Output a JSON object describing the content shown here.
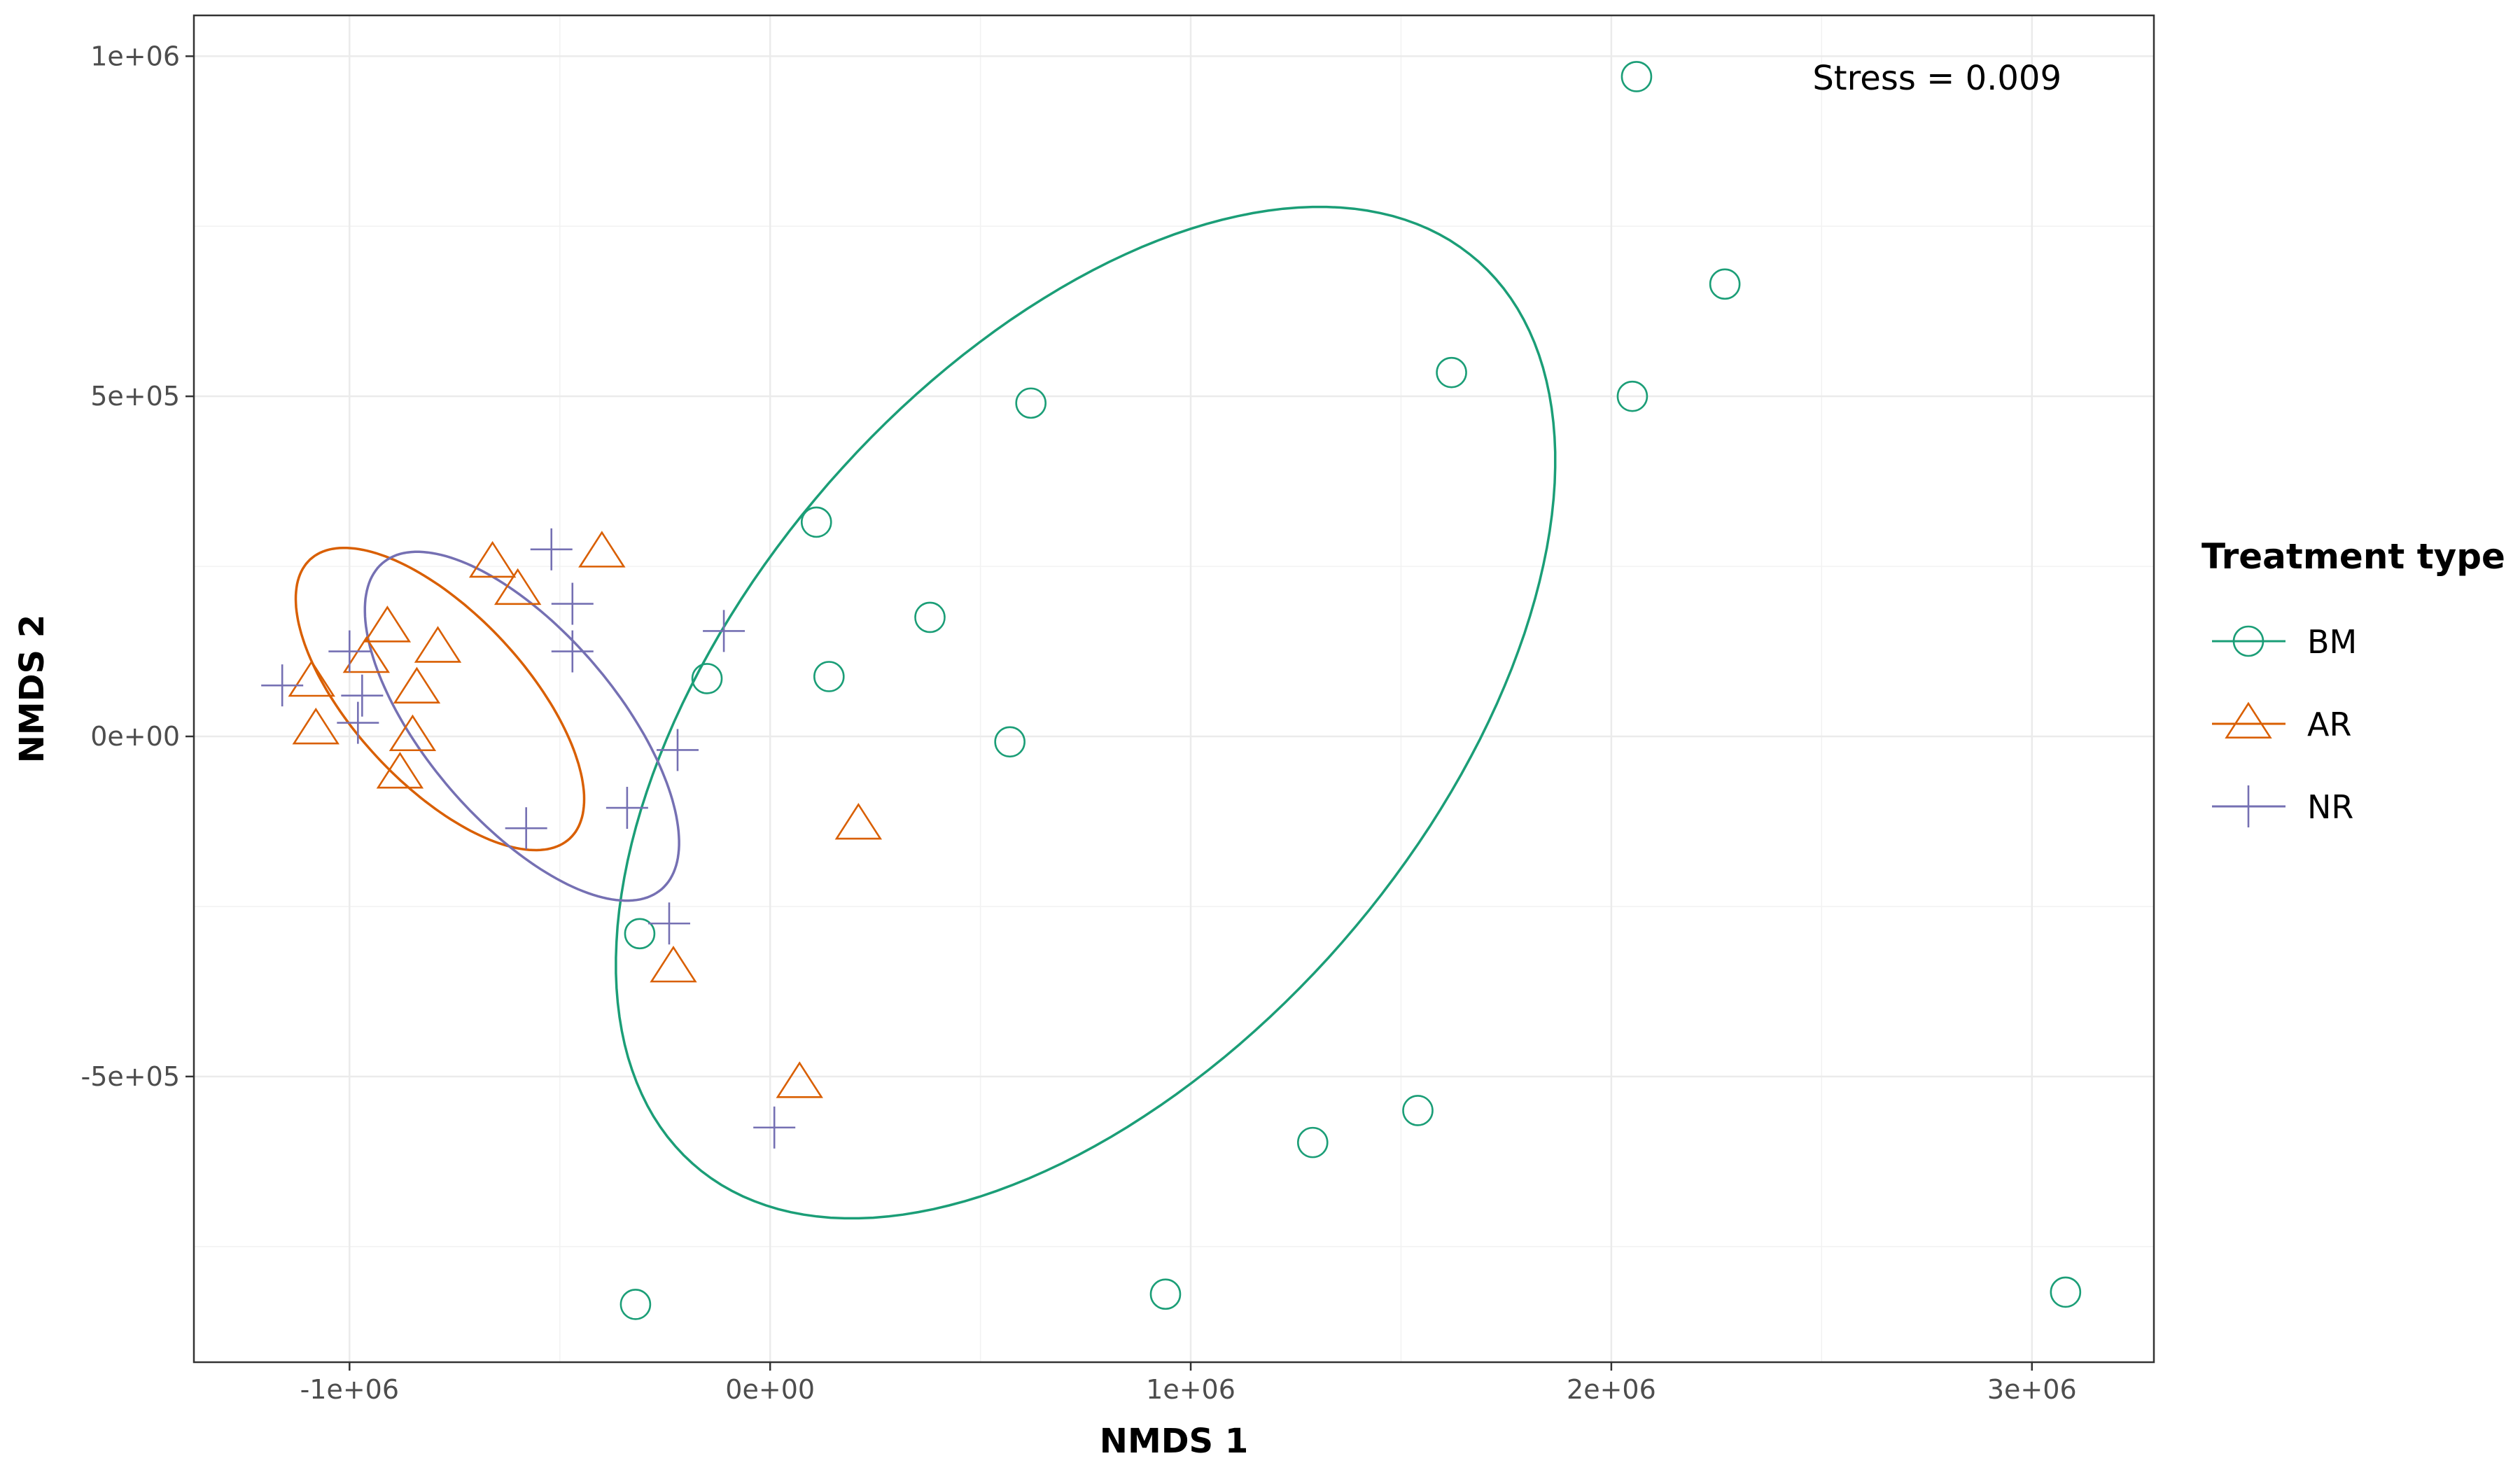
{
  "chart_data": {
    "type": "scatter",
    "title": "",
    "xlabel": "NMDS 1",
    "ylabel": "NMDS 2",
    "xlim": [
      -1370000,
      3290000
    ],
    "ylim": [
      -920000,
      1060000
    ],
    "x_ticks": [
      {
        "value": -1000000,
        "label": "-1e+06"
      },
      {
        "value": 0,
        "label": "0e+00"
      },
      {
        "value": 1000000,
        "label": "1e+06"
      },
      {
        "value": 2000000,
        "label": "2e+06"
      },
      {
        "value": 3000000,
        "label": "3e+06"
      }
    ],
    "y_ticks": [
      {
        "value": -500000,
        "label": "-5e+05"
      },
      {
        "value": 0,
        "label": "0e+00"
      },
      {
        "value": 500000,
        "label": "5e+05"
      },
      {
        "value": 1000000,
        "label": "1e+06"
      }
    ],
    "grid": true,
    "legend": {
      "title": "Treatment type",
      "placement": "right"
    },
    "annotation": "Stress = 0.009",
    "series": [
      {
        "name": "BM",
        "shape": "circle",
        "color": "#1b9e77",
        "points": [
          {
            "x": 2060000,
            "y": 970000
          },
          {
            "x": 2270000,
            "y": 665000
          },
          {
            "x": 1620000,
            "y": 535000
          },
          {
            "x": 2050000,
            "y": 500000
          },
          {
            "x": 620000,
            "y": 490000
          },
          {
            "x": 110000,
            "y": 315000
          },
          {
            "x": 380000,
            "y": 175000
          },
          {
            "x": -150000,
            "y": 85000
          },
          {
            "x": 140000,
            "y": 88000
          },
          {
            "x": 570000,
            "y": -8000
          },
          {
            "x": -310000,
            "y": -290000
          },
          {
            "x": 1540000,
            "y": -550000
          },
          {
            "x": 1290000,
            "y": -597000
          },
          {
            "x": 940000,
            "y": -820000
          },
          {
            "x": -320000,
            "y": -835000
          },
          {
            "x": 3080000,
            "y": -817000
          }
        ],
        "ellipse": {
          "cx": 750000,
          "cy": 35000,
          "rx": 1200000,
          "ry": 600000,
          "angle_deg": 25
        }
      },
      {
        "name": "AR",
        "shape": "triangle",
        "color": "#d95f02",
        "points": [
          {
            "x": -660000,
            "y": 255000
          },
          {
            "x": -400000,
            "y": 270000
          },
          {
            "x": -600000,
            "y": 215000
          },
          {
            "x": -910000,
            "y": 160000
          },
          {
            "x": -790000,
            "y": 130000
          },
          {
            "x": -960000,
            "y": 115000
          },
          {
            "x": -1090000,
            "y": 80000
          },
          {
            "x": -840000,
            "y": 70000
          },
          {
            "x": -1080000,
            "y": 10000
          },
          {
            "x": -850000,
            "y": 0
          },
          {
            "x": -880000,
            "y": -55000
          },
          {
            "x": 210000,
            "y": -130000
          },
          {
            "x": -230000,
            "y": -340000
          },
          {
            "x": 70000,
            "y": -510000
          }
        ],
        "ellipse": {
          "cx": -785000,
          "cy": 55000,
          "rx": 380000,
          "ry": 150000,
          "angle_deg": -28
        }
      },
      {
        "name": "NR",
        "shape": "plus",
        "color": "#7570b3",
        "points": [
          {
            "x": -520000,
            "y": 275000
          },
          {
            "x": -470000,
            "y": 195000
          },
          {
            "x": -110000,
            "y": 155000
          },
          {
            "x": -470000,
            "y": 125000
          },
          {
            "x": -1000000,
            "y": 125000
          },
          {
            "x": -1160000,
            "y": 75000
          },
          {
            "x": -970000,
            "y": 60000
          },
          {
            "x": -980000,
            "y": 20000
          },
          {
            "x": -220000,
            "y": -20000
          },
          {
            "x": -340000,
            "y": -105000
          },
          {
            "x": -580000,
            "y": -135000
          },
          {
            "x": -240000,
            "y": -275000
          },
          {
            "x": 10000,
            "y": -575000
          }
        ],
        "ellipse": {
          "cx": -590000,
          "cy": 15000,
          "rx": 420000,
          "ry": 170000,
          "angle_deg": -30
        }
      }
    ]
  }
}
